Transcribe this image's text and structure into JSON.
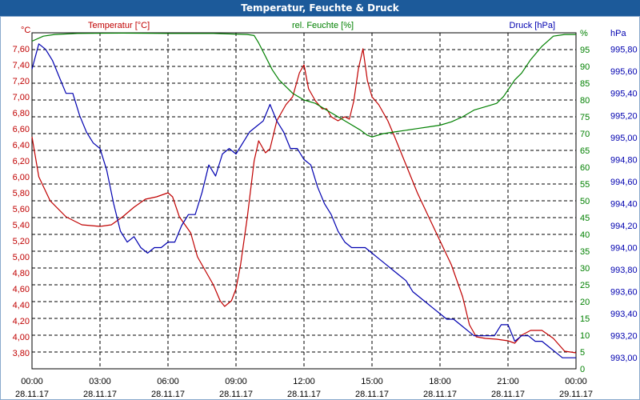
{
  "window": {
    "title": "Temperatur, Feuchte & Druck"
  },
  "colors": {
    "temperature": "#c00000",
    "humidity": "#008000",
    "pressure": "#0000b0",
    "title_bar": "#1c5a9a",
    "grid": "#000000"
  },
  "chart_data": {
    "type": "line",
    "grid": true,
    "grid_style": "dashed",
    "x": {
      "ticks": [
        {
          "time": "00:00",
          "date": "28.11.17"
        },
        {
          "time": "03:00",
          "date": "28.11.17"
        },
        {
          "time": "06:00",
          "date": "28.11.17"
        },
        {
          "time": "09:00",
          "date": "28.11.17"
        },
        {
          "time": "12:00",
          "date": "28.11.17"
        },
        {
          "time": "15:00",
          "date": "28.11.17"
        },
        {
          "time": "18:00",
          "date": "28.11.17"
        },
        {
          "time": "21:00",
          "date": "28.11.17"
        },
        {
          "time": "00:00",
          "date": "29.11.17"
        }
      ],
      "range_hours": [
        0,
        24
      ]
    },
    "axes": {
      "left": {
        "label": "Temperatur [°C]",
        "unit": "°C",
        "range": [
          3.6,
          7.8
        ],
        "ticks": [
          "3,80",
          "4,00",
          "4,20",
          "4,40",
          "4,60",
          "4,80",
          "5,00",
          "5,20",
          "5,40",
          "5,60",
          "5,80",
          "6,00",
          "6,20",
          "6,40",
          "6,60",
          "6,80",
          "7,00",
          "7,20",
          "7,40",
          "7,60"
        ]
      },
      "middle": {
        "label": "rel. Feuchte [%]",
        "unit": "%",
        "range": [
          0,
          100
        ],
        "ticks": [
          "0",
          "5",
          "10",
          "15",
          "20",
          "25",
          "30",
          "35",
          "40",
          "45",
          "50",
          "55",
          "60",
          "65",
          "70",
          "75",
          "80",
          "85",
          "90",
          "95"
        ]
      },
      "right": {
        "label": "Druck [hPa]",
        "unit": "hPa",
        "range": [
          992.9,
          995.95
        ],
        "ticks": [
          "993,00",
          "993,20",
          "993,40",
          "993,60",
          "993,80",
          "994,00",
          "994,20",
          "994,40",
          "994,60",
          "994,80",
          "995,00",
          "995,20",
          "995,40",
          "995,60",
          "995,80"
        ]
      }
    },
    "series": [
      {
        "name": "Temperatur [°C]",
        "axis": "left",
        "color": "#c00000",
        "points": [
          [
            0,
            6.5
          ],
          [
            0.3,
            6.0
          ],
          [
            0.8,
            5.7
          ],
          [
            1.5,
            5.5
          ],
          [
            2.2,
            5.4
          ],
          [
            3.0,
            5.38
          ],
          [
            3.5,
            5.4
          ],
          [
            4.0,
            5.5
          ],
          [
            4.5,
            5.62
          ],
          [
            5.0,
            5.72
          ],
          [
            5.5,
            5.75
          ],
          [
            6.0,
            5.8
          ],
          [
            6.2,
            5.75
          ],
          [
            6.5,
            5.5
          ],
          [
            7.0,
            5.3
          ],
          [
            7.3,
            5.0
          ],
          [
            7.6,
            4.85
          ],
          [
            8.0,
            4.65
          ],
          [
            8.3,
            4.45
          ],
          [
            8.5,
            4.38
          ],
          [
            8.8,
            4.45
          ],
          [
            9.0,
            4.6
          ],
          [
            9.2,
            4.9
          ],
          [
            9.5,
            5.5
          ],
          [
            9.8,
            6.2
          ],
          [
            10.0,
            6.45
          ],
          [
            10.3,
            6.3
          ],
          [
            10.5,
            6.35
          ],
          [
            10.8,
            6.7
          ],
          [
            11.2,
            6.9
          ],
          [
            11.5,
            7.0
          ],
          [
            11.8,
            7.3
          ],
          [
            12.0,
            7.4
          ],
          [
            12.2,
            7.1
          ],
          [
            12.5,
            6.95
          ],
          [
            12.8,
            6.85
          ],
          [
            13.0,
            6.85
          ],
          [
            13.2,
            6.75
          ],
          [
            13.5,
            6.7
          ],
          [
            13.8,
            6.75
          ],
          [
            14.0,
            6.72
          ],
          [
            14.2,
            6.95
          ],
          [
            14.4,
            7.35
          ],
          [
            14.6,
            7.6
          ],
          [
            14.8,
            7.2
          ],
          [
            15.0,
            7.0
          ],
          [
            15.3,
            6.9
          ],
          [
            15.7,
            6.7
          ],
          [
            16.0,
            6.5
          ],
          [
            16.5,
            6.15
          ],
          [
            17.0,
            5.8
          ],
          [
            17.5,
            5.5
          ],
          [
            18.0,
            5.2
          ],
          [
            18.5,
            4.9
          ],
          [
            19.0,
            4.5
          ],
          [
            19.3,
            4.15
          ],
          [
            19.6,
            4.0
          ],
          [
            20.0,
            3.98
          ],
          [
            20.5,
            3.97
          ],
          [
            21.0,
            3.95
          ],
          [
            21.3,
            3.92
          ],
          [
            21.6,
            4.02
          ],
          [
            22.0,
            4.08
          ],
          [
            22.5,
            4.08
          ],
          [
            23.0,
            3.98
          ],
          [
            23.5,
            3.82
          ],
          [
            24.0,
            3.8
          ]
        ]
      },
      {
        "name": "rel. Feuchte [%]",
        "axis": "middle",
        "color": "#008000",
        "points": [
          [
            0,
            97.5
          ],
          [
            0.5,
            99
          ],
          [
            1.0,
            99.5
          ],
          [
            2.0,
            99.8
          ],
          [
            4.0,
            99.9
          ],
          [
            6.0,
            99.8
          ],
          [
            8.0,
            99.8
          ],
          [
            9.5,
            99.5
          ],
          [
            9.8,
            99.2
          ],
          [
            10.0,
            97
          ],
          [
            10.3,
            93
          ],
          [
            10.6,
            89
          ],
          [
            10.9,
            86
          ],
          [
            11.2,
            84
          ],
          [
            11.5,
            82
          ],
          [
            12.0,
            80
          ],
          [
            12.5,
            79
          ],
          [
            13.0,
            77
          ],
          [
            13.5,
            75
          ],
          [
            14.0,
            73
          ],
          [
            14.5,
            71
          ],
          [
            14.8,
            69.5
          ],
          [
            15.0,
            69
          ],
          [
            15.5,
            70
          ],
          [
            16.0,
            70.5
          ],
          [
            16.5,
            71
          ],
          [
            17.0,
            71.5
          ],
          [
            17.5,
            72
          ],
          [
            18.0,
            72.5
          ],
          [
            18.5,
            73.5
          ],
          [
            19.0,
            75
          ],
          [
            19.5,
            77
          ],
          [
            20.0,
            78
          ],
          [
            20.5,
            79
          ],
          [
            20.8,
            81
          ],
          [
            21.0,
            83
          ],
          [
            21.3,
            86
          ],
          [
            21.6,
            88
          ],
          [
            22.0,
            92
          ],
          [
            22.5,
            96
          ],
          [
            23.0,
            99
          ],
          [
            23.5,
            99.5
          ],
          [
            24.0,
            99.5
          ]
        ]
      },
      {
        "name": "Druck [hPa]",
        "axis": "right",
        "color": "#0000b0",
        "points": [
          [
            0,
            995.62
          ],
          [
            0.3,
            995.85
          ],
          [
            0.6,
            995.8
          ],
          [
            0.9,
            995.7
          ],
          [
            1.2,
            995.55
          ],
          [
            1.5,
            995.4
          ],
          [
            1.8,
            995.4
          ],
          [
            2.1,
            995.2
          ],
          [
            2.4,
            995.05
          ],
          [
            2.7,
            994.95
          ],
          [
            3.0,
            994.9
          ],
          [
            3.3,
            994.7
          ],
          [
            3.6,
            994.4
          ],
          [
            3.9,
            994.15
          ],
          [
            4.2,
            994.05
          ],
          [
            4.5,
            994.1
          ],
          [
            4.8,
            994.0
          ],
          [
            5.1,
            993.95
          ],
          [
            5.4,
            994.0
          ],
          [
            5.7,
            994.0
          ],
          [
            6.0,
            994.05
          ],
          [
            6.3,
            994.05
          ],
          [
            6.6,
            994.2
          ],
          [
            6.9,
            994.3
          ],
          [
            7.2,
            994.3
          ],
          [
            7.5,
            994.5
          ],
          [
            7.8,
            994.75
          ],
          [
            8.1,
            994.65
          ],
          [
            8.4,
            994.85
          ],
          [
            8.7,
            994.9
          ],
          [
            9.0,
            994.85
          ],
          [
            9.3,
            994.95
          ],
          [
            9.6,
            995.05
          ],
          [
            9.9,
            995.1
          ],
          [
            10.2,
            995.15
          ],
          [
            10.5,
            995.3
          ],
          [
            10.8,
            995.15
          ],
          [
            11.1,
            995.05
          ],
          [
            11.4,
            994.9
          ],
          [
            11.7,
            994.9
          ],
          [
            12.0,
            994.8
          ],
          [
            12.3,
            994.75
          ],
          [
            12.6,
            994.55
          ],
          [
            12.9,
            994.4
          ],
          [
            13.2,
            994.3
          ],
          [
            13.5,
            994.15
          ],
          [
            13.8,
            994.05
          ],
          [
            14.1,
            994.0
          ],
          [
            14.4,
            994.0
          ],
          [
            14.7,
            994.0
          ],
          [
            15.0,
            993.95
          ],
          [
            15.3,
            993.9
          ],
          [
            15.6,
            993.85
          ],
          [
            15.9,
            993.8
          ],
          [
            16.2,
            993.75
          ],
          [
            16.5,
            993.7
          ],
          [
            16.8,
            993.6
          ],
          [
            17.1,
            993.55
          ],
          [
            17.4,
            993.5
          ],
          [
            17.7,
            993.45
          ],
          [
            18.0,
            993.4
          ],
          [
            18.3,
            993.35
          ],
          [
            18.6,
            993.35
          ],
          [
            18.9,
            993.3
          ],
          [
            19.2,
            993.25
          ],
          [
            19.5,
            993.2
          ],
          [
            19.8,
            993.2
          ],
          [
            20.1,
            993.2
          ],
          [
            20.4,
            993.2
          ],
          [
            20.7,
            993.3
          ],
          [
            21.0,
            993.3
          ],
          [
            21.3,
            993.15
          ],
          [
            21.6,
            993.2
          ],
          [
            21.9,
            993.2
          ],
          [
            22.2,
            993.15
          ],
          [
            22.5,
            993.15
          ],
          [
            22.8,
            993.1
          ],
          [
            23.1,
            993.05
          ],
          [
            23.4,
            993.0
          ],
          [
            23.7,
            993.0
          ],
          [
            24.0,
            993.0
          ]
        ]
      }
    ]
  }
}
